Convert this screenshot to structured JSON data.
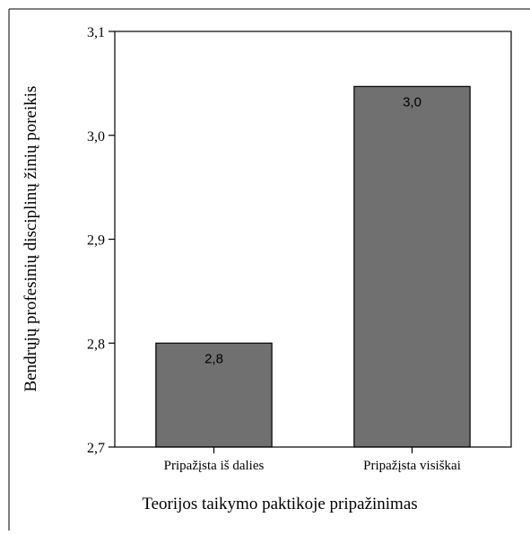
{
  "chart_data": {
    "type": "bar",
    "categories": [
      "Pripažįsta iš dalies",
      "Pripažįsta visiškai"
    ],
    "values": [
      2.8,
      3.047
    ],
    "data_labels": [
      "2,8",
      "3,0"
    ],
    "xlabel": "Teorijos taikymo paktikoje pripažinimas",
    "ylabel": "Bendrųjų profesinių disciplinų žinių poreikis",
    "ylim": [
      2.7,
      3.1
    ],
    "yticks": [
      2.7,
      2.8,
      2.9,
      3.0,
      3.1
    ],
    "ytick_labels": [
      "2,7",
      "2,8",
      "2,9",
      "3,0",
      "3,1"
    ],
    "bar_color": "#707070",
    "grid": false,
    "legend": "none"
  }
}
